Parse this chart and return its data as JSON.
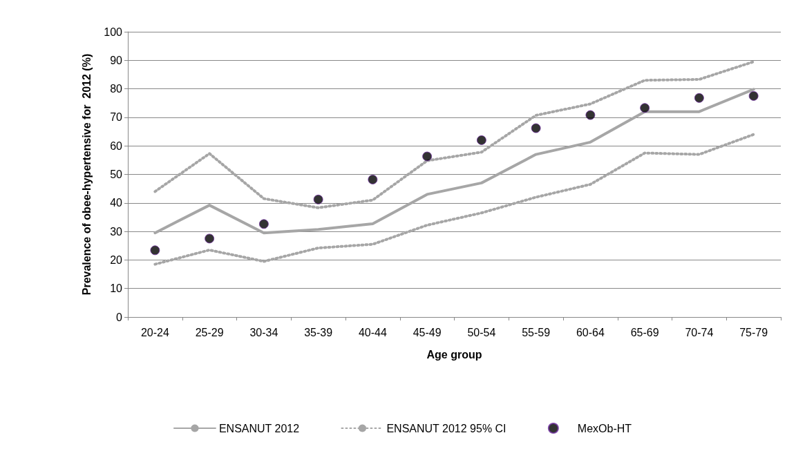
{
  "chart_data": {
    "type": "line",
    "xlabel": "Age group",
    "ylabel": "Prevalence of obee-hypertensive for  2012 (%)",
    "categories": [
      "20-24",
      "25-29",
      "30-34",
      "35-39",
      "40-44",
      "45-49",
      "50-54",
      "55-59",
      "60-64",
      "65-69",
      "70-74",
      "75-79"
    ],
    "ylim": [
      0,
      100
    ],
    "yticks": [
      0,
      10,
      20,
      30,
      40,
      50,
      60,
      70,
      80,
      90,
      100
    ],
    "grid": "y",
    "legend": "bottom",
    "series": [
      {
        "name": "ENSANUT 2012",
        "line_style": "solid",
        "color": "#a6a6a6",
        "values": [
          29.5,
          39.2,
          29.5,
          30.7,
          32.7,
          43,
          47,
          57,
          61.3,
          72,
          72,
          79.8
        ]
      },
      {
        "name": "ENSANUT 2012 95% CI",
        "line_style": "dotted",
        "color": "#a6a6a6",
        "values": [
          44,
          57.3,
          41.5,
          38.3,
          41,
          54.8,
          57.8,
          70.7,
          74.7,
          83,
          83.3,
          89.5
        ]
      },
      {
        "line_style": "dotted",
        "color": "#a6a6a6",
        "values": [
          18.5,
          23.5,
          19.5,
          24.2,
          25.5,
          32.2,
          36.5,
          42,
          46.5,
          57.5,
          57,
          64
        ]
      },
      {
        "name": "MexOb-HT",
        "type": "scatter",
        "marker": "circle",
        "color": "#000000",
        "values": [
          23.4,
          27.5,
          32.6,
          41.2,
          48.2,
          56.3,
          62,
          66.2,
          70.8,
          73.3,
          76.8,
          77.5
        ]
      }
    ]
  }
}
